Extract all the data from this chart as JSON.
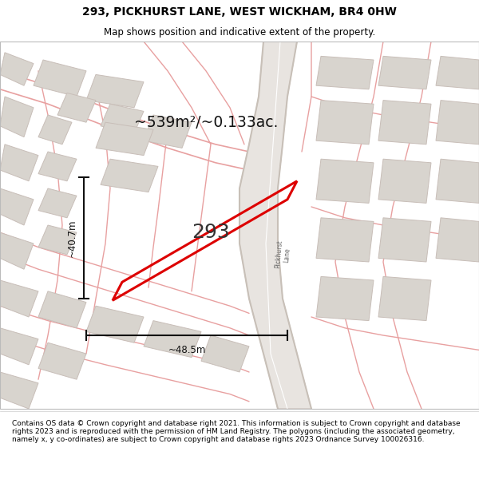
{
  "title": "293, PICKHURST LANE, WEST WICKHAM, BR4 0HW",
  "subtitle": "Map shows position and indicative extent of the property.",
  "footer": "Contains OS data © Crown copyright and database right 2021. This information is subject to Crown copyright and database rights 2023 and is reproduced with the permission of HM Land Registry. The polygons (including the associated geometry, namely x, y co-ordinates) are subject to Crown copyright and database rights 2023 Ordnance Survey 100026316.",
  "area_text": "~539m²/~0.133ac.",
  "property_number": "293",
  "width_label": "~48.5m",
  "height_label": "~40.7m",
  "map_bg": "#f7f5f2",
  "road_line_color": "#e8a0a0",
  "building_face": "#d8d4ce",
  "building_edge": "#c8beb8",
  "highlight_color": "#dd0000",
  "pickhurst_lane_color": "#c8c0b8",
  "title_fontsize": 10,
  "subtitle_fontsize": 8.5,
  "footer_fontsize": 6.5
}
